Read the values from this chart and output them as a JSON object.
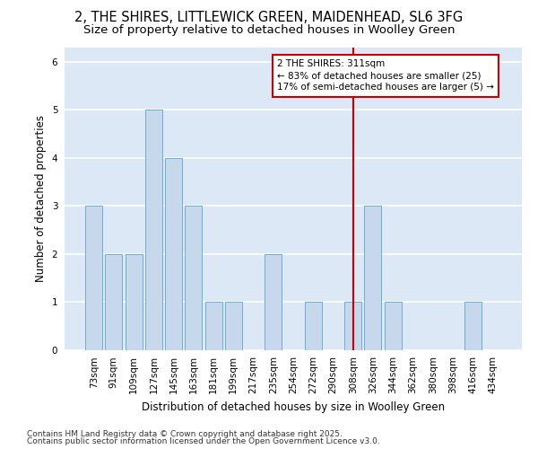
{
  "title_line1": "2, THE SHIRES, LITTLEWICK GREEN, MAIDENHEAD, SL6 3FG",
  "title_line2": "Size of property relative to detached houses in Woolley Green",
  "xlabel": "Distribution of detached houses by size in Woolley Green",
  "ylabel": "Number of detached properties",
  "categories": [
    "73sqm",
    "91sqm",
    "109sqm",
    "127sqm",
    "145sqm",
    "163sqm",
    "181sqm",
    "199sqm",
    "217sqm",
    "235sqm",
    "254sqm",
    "272sqm",
    "290sqm",
    "308sqm",
    "326sqm",
    "344sqm",
    "362sqm",
    "380sqm",
    "398sqm",
    "416sqm",
    "434sqm"
  ],
  "values": [
    3,
    2,
    2,
    5,
    4,
    3,
    1,
    1,
    0,
    2,
    0,
    1,
    0,
    1,
    3,
    1,
    0,
    0,
    0,
    1,
    0
  ],
  "bar_color": "#c8d8ec",
  "bar_edgecolor": "#6baed6",
  "ylim": [
    0,
    6.3
  ],
  "yticks": [
    0,
    1,
    2,
    3,
    4,
    5,
    6
  ],
  "vline_x_index": 13,
  "vline_color": "#cc0000",
  "annotation_title": "2 THE SHIRES: 311sqm",
  "annotation_line2": "← 83% of detached houses are smaller (25)",
  "annotation_line3": "17% of semi-detached houses are larger (5) →",
  "annotation_box_color": "#cc0000",
  "footer_line1": "Contains HM Land Registry data © Crown copyright and database right 2025.",
  "footer_line2": "Contains public sector information licensed under the Open Government Licence v3.0.",
  "fig_background": "#ffffff",
  "plot_background": "#dce8f5",
  "grid_color": "#ffffff",
  "title_fontsize": 10.5,
  "subtitle_fontsize": 9.5,
  "axis_label_fontsize": 8.5,
  "tick_fontsize": 7.5,
  "annotation_fontsize": 7.5,
  "footer_fontsize": 6.5
}
